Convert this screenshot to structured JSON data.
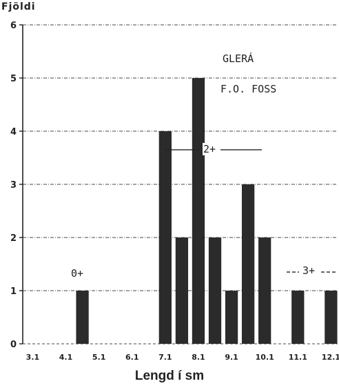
{
  "chart_data": {
    "type": "bar",
    "title": "GLERÁ",
    "subtitle": "F.O. FOSS",
    "ylabel": "Fjöldi",
    "xlabel": "Lengd í sm",
    "ylim": [
      0,
      6
    ],
    "xlim": [
      2.8,
      12.3
    ],
    "yticks": [
      "0",
      "1",
      "2",
      "3",
      "4",
      "5",
      "6"
    ],
    "xticks": [
      {
        "value": 3.1,
        "label": "3.1"
      },
      {
        "value": 4.1,
        "label": "4.1"
      },
      {
        "value": 5.1,
        "label": "5.1"
      },
      {
        "value": 6.1,
        "label": "6.1"
      },
      {
        "value": 7.1,
        "label": "7.1"
      },
      {
        "value": 8.1,
        "label": "8.1"
      },
      {
        "value": 9.1,
        "label": "9.1"
      },
      {
        "value": 10.1,
        "label": "10.1"
      },
      {
        "value": 11.1,
        "label": "11.1"
      },
      {
        "value": 12.1,
        "label": "12.1"
      }
    ],
    "bin_width": 0.5,
    "bars": [
      {
        "x": 4.6,
        "value": 1
      },
      {
        "x": 7.1,
        "value": 4
      },
      {
        "x": 7.6,
        "value": 2
      },
      {
        "x": 8.1,
        "value": 5
      },
      {
        "x": 8.6,
        "value": 2
      },
      {
        "x": 9.1,
        "value": 1
      },
      {
        "x": 9.6,
        "value": 3
      },
      {
        "x": 10.1,
        "value": 2
      },
      {
        "x": 11.1,
        "value": 1
      },
      {
        "x": 12.1,
        "value": 1
      }
    ],
    "annotations": [
      {
        "text": "0+",
        "x": 4.6,
        "y": 1.3
      },
      {
        "text": "2+",
        "x": 8.5,
        "y": 3.65
      },
      {
        "text": "3+",
        "x": 11.6,
        "y": 1.35
      }
    ],
    "grid": "horizontal dashed",
    "bar_color": "#2b2b2b"
  }
}
